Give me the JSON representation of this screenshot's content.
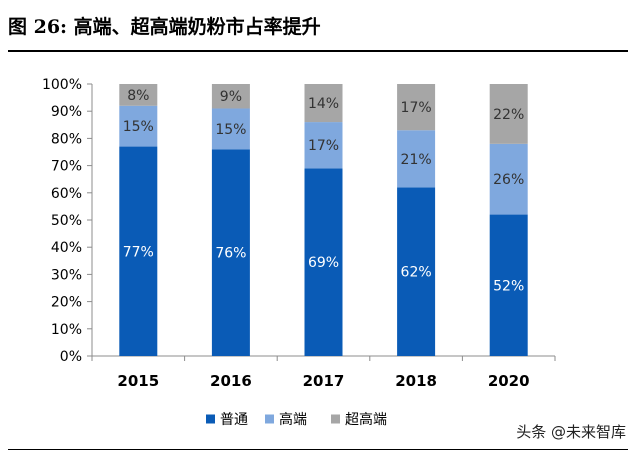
{
  "figure": {
    "title": "图 26: 高端、超高端奶粉市占率提升",
    "watermark": "头条 @未来智库"
  },
  "colors": {
    "series": [
      "#0a5bb6",
      "#7fa8de",
      "#a6a6a6"
    ],
    "axis": "#8c8c8c",
    "text": "#000000",
    "label_light": "#ffffff",
    "label_dark": "#333333"
  },
  "chart_data": {
    "type": "bar",
    "stacked": true,
    "categories": [
      "2015",
      "2016",
      "2017",
      "2018",
      "2020"
    ],
    "series": [
      {
        "name": "普通",
        "values": [
          77,
          76,
          69,
          62,
          52
        ],
        "labels": [
          "77%",
          "76%",
          "69%",
          "62%",
          "52%"
        ]
      },
      {
        "name": "高端",
        "values": [
          15,
          15,
          17,
          21,
          26
        ],
        "labels": [
          "15%",
          "15%",
          "17%",
          "21%",
          "26%"
        ]
      },
      {
        "name": "超高端",
        "values": [
          8,
          9,
          14,
          17,
          22
        ],
        "labels": [
          "8%",
          "9%",
          "14%",
          "17%",
          "22%"
        ]
      }
    ],
    "ylim": [
      0,
      100
    ],
    "yticks": [
      "0%",
      "10%",
      "20%",
      "30%",
      "40%",
      "50%",
      "60%",
      "70%",
      "80%",
      "90%",
      "100%"
    ],
    "grid": false,
    "legend": "bottom"
  }
}
